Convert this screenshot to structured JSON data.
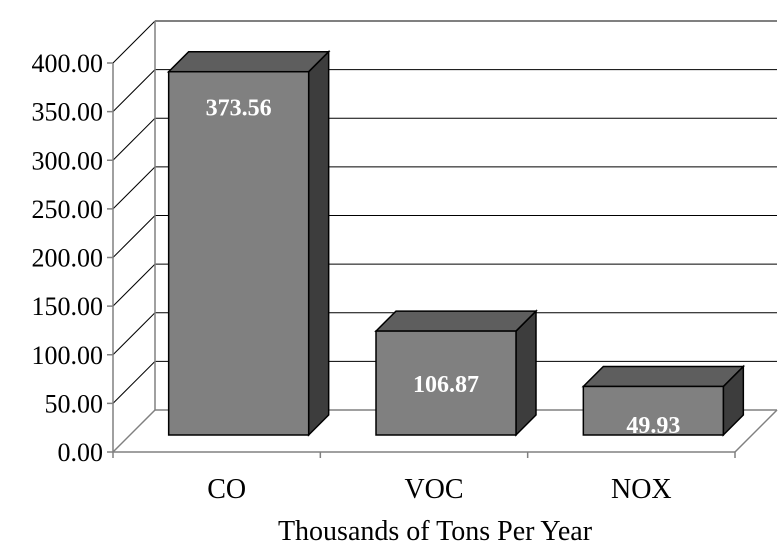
{
  "chart_data": {
    "type": "bar",
    "title": "",
    "xlabel": "Thousands of Tons Per Year",
    "ylabel": "",
    "categories": [
      "CO",
      "VOC",
      "NOX"
    ],
    "values": [
      373.56,
      106.87,
      49.93
    ],
    "data_labels": [
      "373.56",
      "106.87",
      "49.93"
    ],
    "yticks": [
      "0.00",
      "50.00",
      "100.00",
      "150.00",
      "200.00",
      "250.00",
      "300.00",
      "350.00",
      "400.00"
    ],
    "ylim": [
      0,
      400
    ],
    "grid": true,
    "legend": "none",
    "colors": {
      "bar_front": "#808080",
      "bar_top": "#5e5e5e",
      "bar_side": "#3d3d3d",
      "wall": "#ffffff",
      "grid": "#000000",
      "axis": "#808080"
    }
  }
}
